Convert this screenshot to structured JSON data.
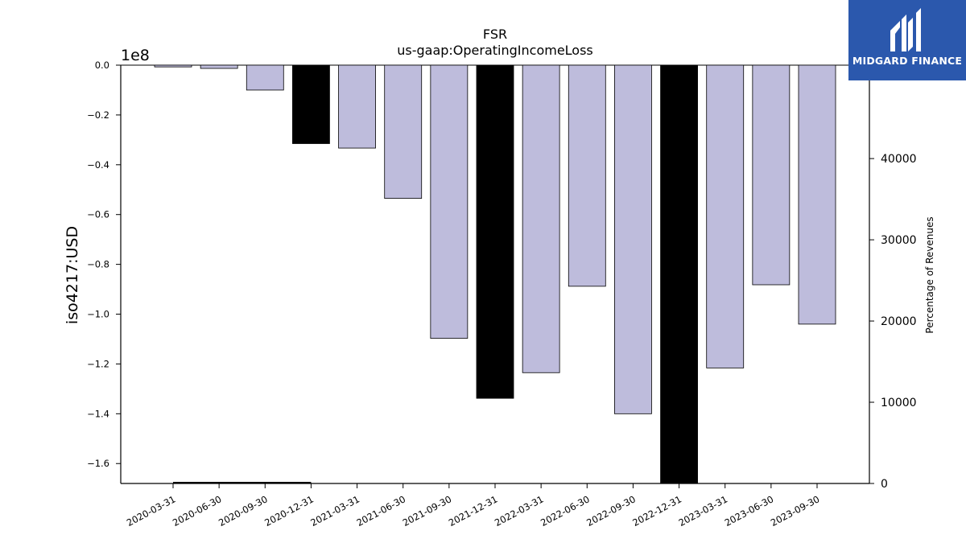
{
  "chart_data": {
    "type": "bar",
    "title": "FSR",
    "subtitle": "us-gaap:OperatingIncomeLoss",
    "ylabel": "iso4217:USD",
    "y_offset_label": "1e8",
    "y2label": "Percentage of Revenues",
    "categories": [
      "2020-03-31",
      "2020-06-30",
      "2020-09-30",
      "2020-12-31",
      "2021-03-31",
      "2021-06-30",
      "2021-09-30",
      "2021-12-31",
      "2022-03-31",
      "2022-06-30",
      "2022-09-30",
      "2022-12-31",
      "2023-03-31",
      "2023-06-30",
      "2023-09-30"
    ],
    "values": [
      -700000,
      -1300000,
      -10000000,
      -31500000,
      -33300000,
      -53500000,
      -109700000,
      -133800000,
      -123500000,
      -88800000,
      -140000000,
      -168000000,
      -121600000,
      -88200000,
      -104000000
    ],
    "highlight": [
      false,
      false,
      false,
      true,
      false,
      false,
      false,
      true,
      false,
      false,
      false,
      true,
      false,
      false,
      false
    ],
    "ylim": [
      -1.68,
      0.0
    ],
    "yticks": [
      "0.0",
      "−0.2",
      "−0.4",
      "−0.6",
      "−0.8",
      "−1.0",
      "−1.2",
      "−1.4",
      "−1.6"
    ],
    "ytick_values": [
      0,
      -0.2,
      -0.4,
      -0.6,
      -0.8,
      -1.0,
      -1.2,
      -1.4,
      -1.6
    ],
    "y2lim": [
      0,
      51500
    ],
    "y2ticks": [
      "0",
      "10000",
      "20000",
      "30000",
      "40000"
    ],
    "y2tick_values": [
      0,
      10000,
      20000,
      30000,
      40000
    ],
    "colors": {
      "bar": "#bebcdc",
      "highlight": "#000000",
      "edge": "#000000"
    }
  },
  "logo": {
    "text": "MIDGARD FINANCE"
  }
}
